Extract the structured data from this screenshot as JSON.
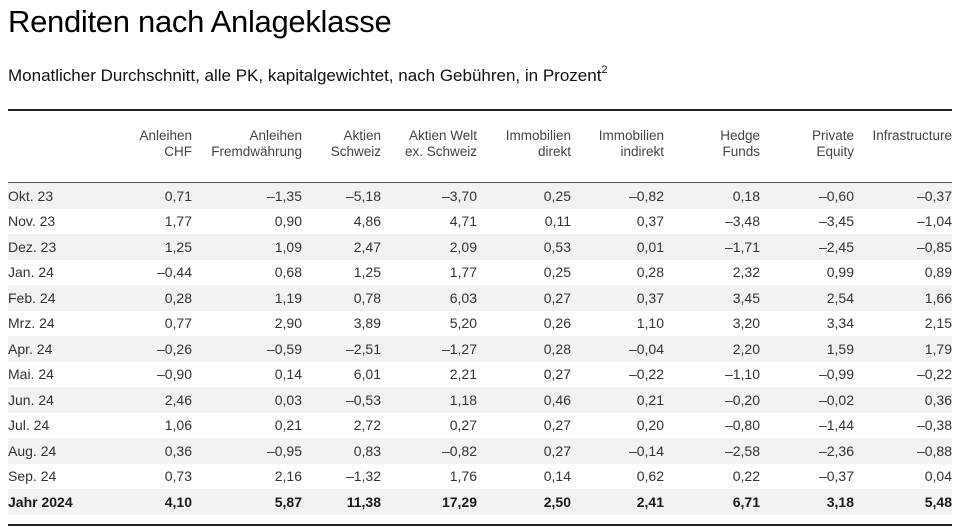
{
  "header": {
    "title": "Renditen nach Anlageklasse",
    "subtitle": "Monatlicher Durchschnitt, alle PK, kapitalgewichtet, nach Gebühren, in Prozent",
    "subtitle_footnote": "2"
  },
  "table": {
    "columns": [
      {
        "line1": "",
        "line2": ""
      },
      {
        "line1": "Anleihen",
        "line2": "CHF"
      },
      {
        "line1": "Anleihen",
        "line2": "Fremdwährung"
      },
      {
        "line1": "Aktien",
        "line2": "Schweiz"
      },
      {
        "line1": "Aktien Welt",
        "line2": "ex. Schweiz"
      },
      {
        "line1": "Immobilien",
        "line2": "direkt"
      },
      {
        "line1": "Immobilien",
        "line2": "indirekt"
      },
      {
        "line1": "Hedge",
        "line2": "Funds"
      },
      {
        "line1": "Private",
        "line2": "Equity"
      },
      {
        "line1": "Infrastructure",
        "line2": ""
      }
    ],
    "rows": [
      [
        "Okt. 23",
        "0,71",
        "–1,35",
        "–5,18",
        "–3,70",
        "0,25",
        "–0,82",
        "0,18",
        "–0,60",
        "–0,37"
      ],
      [
        "Nov. 23",
        "1,77",
        "0,90",
        "4,86",
        "4,71",
        "0,11",
        "0,37",
        "–3,48",
        "–3,45",
        "–1,04"
      ],
      [
        "Dez. 23",
        "1,25",
        "1,09",
        "2,47",
        "2,09",
        "0,53",
        "0,01",
        "–1,71",
        "–2,45",
        "–0,85"
      ],
      [
        "Jan. 24",
        "–0,44",
        "0,68",
        "1,25",
        "1,77",
        "0,25",
        "0,28",
        "2,32",
        "0,99",
        "0,89"
      ],
      [
        "Feb. 24",
        "0,28",
        "1,19",
        "0,78",
        "6,03",
        "0,27",
        "0,37",
        "3,45",
        "2,54",
        "1,66"
      ],
      [
        "Mrz. 24",
        "0,77",
        "2,90",
        "3,89",
        "5,20",
        "0,26",
        "1,10",
        "3,20",
        "3,34",
        "2,15"
      ],
      [
        "Apr. 24",
        "–0,26",
        "–0,59",
        "–2,51",
        "–1,27",
        "0,28",
        "–0,04",
        "2,20",
        "1,59",
        "1,79"
      ],
      [
        "Mai. 24",
        "–0,90",
        "0,14",
        "6,01",
        "2,21",
        "0,27",
        "–0,22",
        "–1,10",
        "–0,99",
        "–0,22"
      ],
      [
        "Jun. 24",
        "2,46",
        "0,03",
        "–0,53",
        "1,18",
        "0,46",
        "0,21",
        "–0,20",
        "–0,02",
        "0,36"
      ],
      [
        "Jul. 24",
        "1,06",
        "0,21",
        "2,72",
        "0,27",
        "0,27",
        "0,20",
        "–0,80",
        "–1,44",
        "–0,38"
      ],
      [
        "Aug. 24",
        "0,36",
        "–0,95",
        "0,83",
        "–0,82",
        "0,27",
        "–0,14",
        "–2,58",
        "–2,36",
        "–0,88"
      ],
      [
        "Sep. 24",
        "0,73",
        "2,16",
        "–1,32",
        "1,76",
        "0,14",
        "0,62",
        "0,22",
        "–0,37",
        "0,04"
      ]
    ],
    "total": [
      "Jahr 2024",
      "4,10",
      "5,87",
      "11,38",
      "17,29",
      "2,50",
      "2,41",
      "6,71",
      "3,18",
      "5,48"
    ]
  },
  "colors": {
    "row_shade": "#f2f2f2",
    "rule": "#222222",
    "text": "#333333"
  }
}
